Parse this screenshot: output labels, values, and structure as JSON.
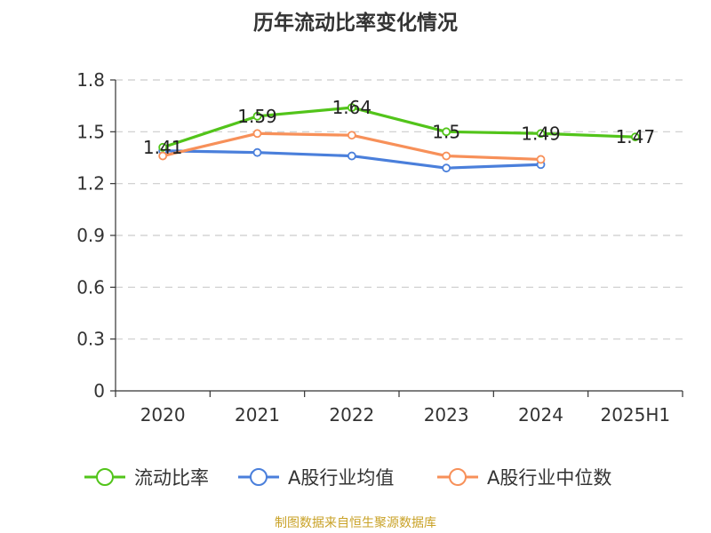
{
  "chart_data": {
    "type": "line",
    "title": "历年流动比率变化情况",
    "categories": [
      "2020",
      "2021",
      "2022",
      "2023",
      "2024",
      "2025H1"
    ],
    "ylim": [
      0,
      1.8
    ],
    "yticks": [
      0,
      0.3,
      0.6,
      0.9,
      1.2,
      1.5,
      1.8
    ],
    "ytick_labels": [
      "0",
      "0.3",
      "0.6",
      "0.9",
      "1.2",
      "1.5",
      "1.8"
    ],
    "grid": true,
    "legend_position": "bottom",
    "series": [
      {
        "name": "流动比率",
        "color": "#52C41A",
        "values": [
          1.41,
          1.59,
          1.64,
          1.5,
          1.49,
          1.47
        ],
        "labels": [
          "1.41",
          "1.59",
          "1.64",
          "1.5",
          "1.49",
          "1.47"
        ]
      },
      {
        "name": "A股行业均值",
        "color": "#4A7FDB",
        "values": [
          1.39,
          1.38,
          1.36,
          1.29,
          1.31,
          null
        ]
      },
      {
        "name": "A股行业中位数",
        "color": "#F79059",
        "values": [
          1.36,
          1.49,
          1.48,
          1.36,
          1.34,
          null
        ]
      }
    ]
  },
  "source_text": "制图数据来自恒生聚源数据库"
}
